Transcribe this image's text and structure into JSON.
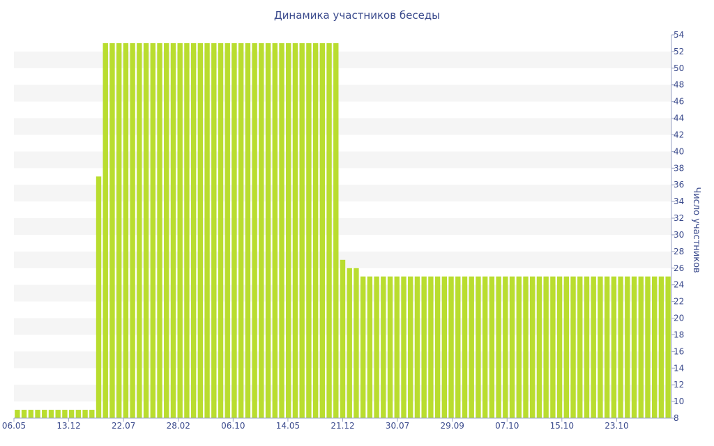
{
  "chart_data": {
    "type": "bar",
    "title": "Динамика участников беседы",
    "xlabel": "",
    "ylabel": "Число участников",
    "ylim": [
      8,
      54
    ],
    "y_ticks": [
      8,
      10,
      12,
      14,
      16,
      18,
      20,
      22,
      24,
      26,
      28,
      30,
      32,
      34,
      36,
      38,
      40,
      42,
      44,
      46,
      48,
      50,
      52,
      54
    ],
    "y_axis_side": "right",
    "x_tick_labels": [
      "06.05",
      "13.12",
      "22.07",
      "28.02",
      "06.10",
      "14.05",
      "21.12",
      "30.07",
      "29.09",
      "07.10",
      "15.10",
      "23.10"
    ],
    "grid": "horizontal alternating bands",
    "bar_color": "#b9dd2f",
    "band_color": "#f5f5f5",
    "text_color": "#3a4a8c",
    "values": [
      9,
      9,
      9,
      9,
      9,
      9,
      9,
      9,
      9,
      9,
      9,
      9,
      37,
      53,
      53,
      53,
      53,
      53,
      53,
      53,
      53,
      53,
      53,
      53,
      53,
      53,
      53,
      53,
      53,
      53,
      53,
      53,
      53,
      53,
      53,
      53,
      53,
      53,
      53,
      53,
      53,
      53,
      53,
      53,
      53,
      53,
      53,
      53,
      27,
      26,
      26,
      25,
      25,
      25,
      25,
      25,
      25,
      25,
      25,
      25,
      25,
      25,
      25,
      25,
      25,
      25,
      25,
      25,
      25,
      25,
      25,
      25,
      25,
      25,
      25,
      25,
      25,
      25,
      25,
      25,
      25,
      25,
      25,
      25,
      25,
      25,
      25,
      25,
      25,
      25,
      25,
      25,
      25,
      25,
      25,
      25,
      25
    ]
  }
}
